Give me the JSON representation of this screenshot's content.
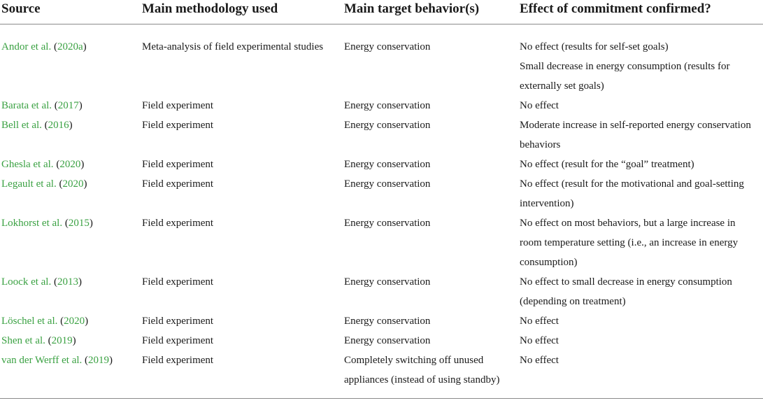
{
  "headers": {
    "source": "Source",
    "methodology": "Main methodology used",
    "target": "Main target behavior(s)",
    "effect": "Effect of commitment confirmed?"
  },
  "rows": [
    {
      "author": "Andor et al.",
      "year": "2020a",
      "method": "Meta-analysis of field experimental studies",
      "target": "Energy conservation",
      "effect": [
        "No effect (results for self-set goals)",
        "Small decrease in energy consumption (results for externally set goals)"
      ]
    },
    {
      "author": "Barata et al.",
      "year": "2017",
      "method": "Field experiment",
      "target": "Energy conservation",
      "effect": [
        "No effect"
      ]
    },
    {
      "author": "Bell et al.",
      "year": "2016",
      "method": "Field experiment",
      "target": "Energy conservation",
      "effect": [
        "Moderate increase in self-reported energy conservation behaviors"
      ]
    },
    {
      "author": "Ghesla et al.",
      "year": "2020",
      "method": "Field experiment",
      "target": "Energy conservation",
      "effect": [
        "No effect (result for the “goal” treatment)"
      ]
    },
    {
      "author": "Legault et al.",
      "year": "2020",
      "method": "Field experiment",
      "target": "Energy conservation",
      "effect": [
        "No effect (result for the motivational and goal-setting intervention)"
      ]
    },
    {
      "author": "Lokhorst et al.",
      "year": "2015",
      "method": "Field experiment",
      "target": "Energy conservation",
      "effect": [
        "No effect on most behaviors, but a large increase in room temperature setting (i.e., an increase in energy consumption)"
      ]
    },
    {
      "author": "Loock et al.",
      "year": "2013",
      "method": "Field experiment",
      "target": "Energy conservation",
      "effect": [
        "No effect to small decrease in energy consumption (depending on treatment)"
      ]
    },
    {
      "author": "Löschel et al.",
      "year": "2020",
      "method": "Field experiment",
      "target": "Energy conservation",
      "effect": [
        "No effect"
      ]
    },
    {
      "author": "Shen et al.",
      "year": "2019",
      "method": "Field experiment",
      "target": "Energy conservation",
      "effect": [
        "No effect"
      ]
    },
    {
      "author": "van der Werff et al.",
      "year": "2019",
      "method": "Field experiment",
      "target": "Completely switching off unused appliances (instead of using standby)",
      "effect": [
        "No effect"
      ]
    }
  ],
  "colors": {
    "link": "#3aa142",
    "text": "#1a1a1a",
    "rule": "#8a8a8a"
  }
}
